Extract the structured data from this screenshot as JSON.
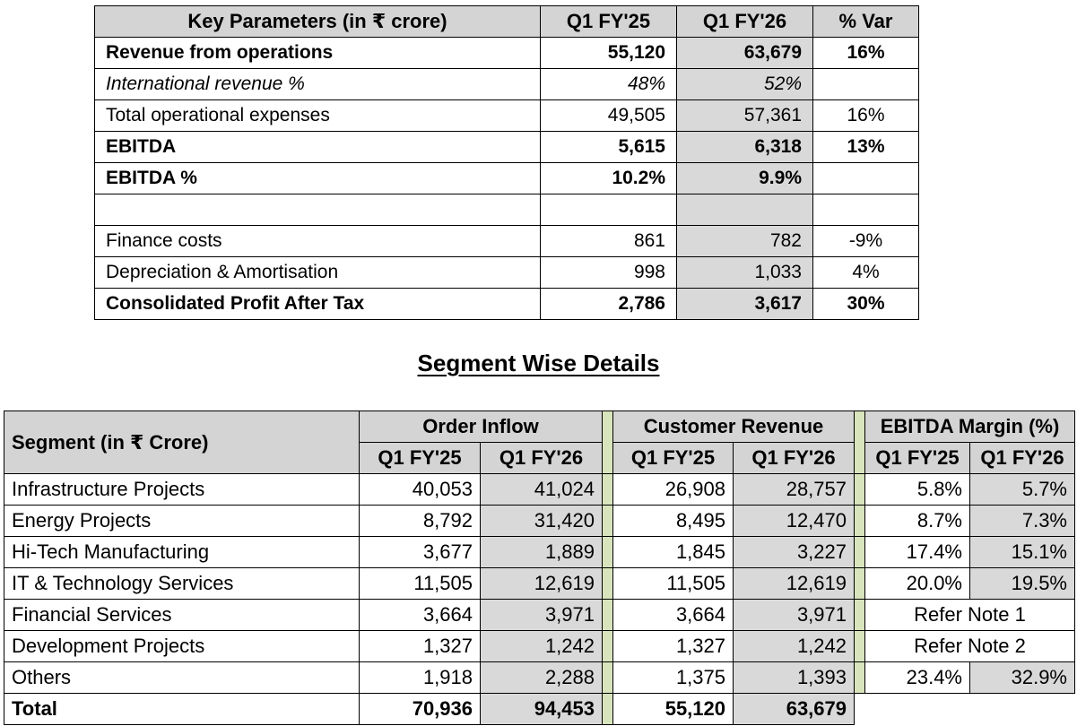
{
  "key_table": {
    "headers": [
      "Key Parameters (in ₹ crore)",
      "Q1 FY'25",
      "Q1 FY'26",
      "% Var"
    ],
    "rows": [
      {
        "label": "Revenue from operations",
        "q1_25": "55,120",
        "q1_26": "63,679",
        "var": "16%",
        "style": "bold"
      },
      {
        "label": "International revenue %",
        "q1_25": "48%",
        "q1_26": "52%",
        "var": "",
        "style": "ital"
      },
      {
        "label": "Total operational expenses",
        "q1_25": "49,505",
        "q1_26": "57,361",
        "var": "16%",
        "style": ""
      },
      {
        "label": "EBITDA",
        "q1_25": "5,615",
        "q1_26": "6,318",
        "var": "13%",
        "style": "bold"
      },
      {
        "label": "EBITDA %",
        "q1_25": "10.2%",
        "q1_26": "9.9%",
        "var": "",
        "style": "bold"
      },
      {
        "label": "",
        "q1_25": "",
        "q1_26": "",
        "var": "",
        "style": ""
      },
      {
        "label": "Finance costs",
        "q1_25": "861",
        "q1_26": "782",
        "var": "-9%",
        "style": ""
      },
      {
        "label": "Depreciation & Amortisation",
        "q1_25": "998",
        "q1_26": "1,033",
        "var": "4%",
        "style": ""
      },
      {
        "label": "Consolidated Profit After Tax",
        "q1_25": "2,786",
        "q1_26": "3,617",
        "var": "30%",
        "style": "bold"
      }
    ]
  },
  "segment_title": "Segment Wise Details",
  "segment_table": {
    "segment_header": "Segment (in ₹ Crore)",
    "group_headers": [
      "Order Inflow",
      "Customer Revenue",
      "EBITDA Margin (%)"
    ],
    "period_headers": [
      "Q1 FY'25",
      "Q1 FY'26"
    ],
    "rows": [
      {
        "segment": "Infrastructure Projects",
        "oi_25": "40,053",
        "oi_26": "41,024",
        "cr_25": "26,908",
        "cr_26": "28,757",
        "em_25": "5.8%",
        "em_26": "5.7%",
        "note": ""
      },
      {
        "segment": "Energy Projects",
        "oi_25": "8,792",
        "oi_26": "31,420",
        "cr_25": "8,495",
        "cr_26": "12,470",
        "em_25": "8.7%",
        "em_26": "7.3%",
        "note": ""
      },
      {
        "segment": "Hi-Tech Manufacturing",
        "oi_25": "3,677",
        "oi_26": "1,889",
        "cr_25": "1,845",
        "cr_26": "3,227",
        "em_25": "17.4%",
        "em_26": "15.1%",
        "note": ""
      },
      {
        "segment": "IT & Technology Services",
        "oi_25": "11,505",
        "oi_26": "12,619",
        "cr_25": "11,505",
        "cr_26": "12,619",
        "em_25": "20.0%",
        "em_26": "19.5%",
        "note": ""
      },
      {
        "segment": "Financial Services",
        "oi_25": "3,664",
        "oi_26": "3,971",
        "cr_25": "3,664",
        "cr_26": "3,971",
        "em_25": "",
        "em_26": "",
        "note": "Refer Note 1"
      },
      {
        "segment": "Development Projects",
        "oi_25": "1,327",
        "oi_26": "1,242",
        "cr_25": "1,327",
        "cr_26": "1,242",
        "em_25": "",
        "em_26": "",
        "note": "Refer Note 2"
      },
      {
        "segment": "Others",
        "oi_25": "1,918",
        "oi_26": "2,288",
        "cr_25": "1,375",
        "cr_26": "1,393",
        "em_25": "23.4%",
        "em_26": "32.9%",
        "note": ""
      }
    ],
    "total": {
      "segment": "Total",
      "oi_25": "70,936",
      "oi_26": "94,453",
      "cr_25": "55,120",
      "cr_26": "63,679"
    }
  },
  "colors": {
    "header_grey": "#d4d4d4",
    "shade_grey": "#d9d9d9",
    "separator_green": "#d8e4bc"
  }
}
